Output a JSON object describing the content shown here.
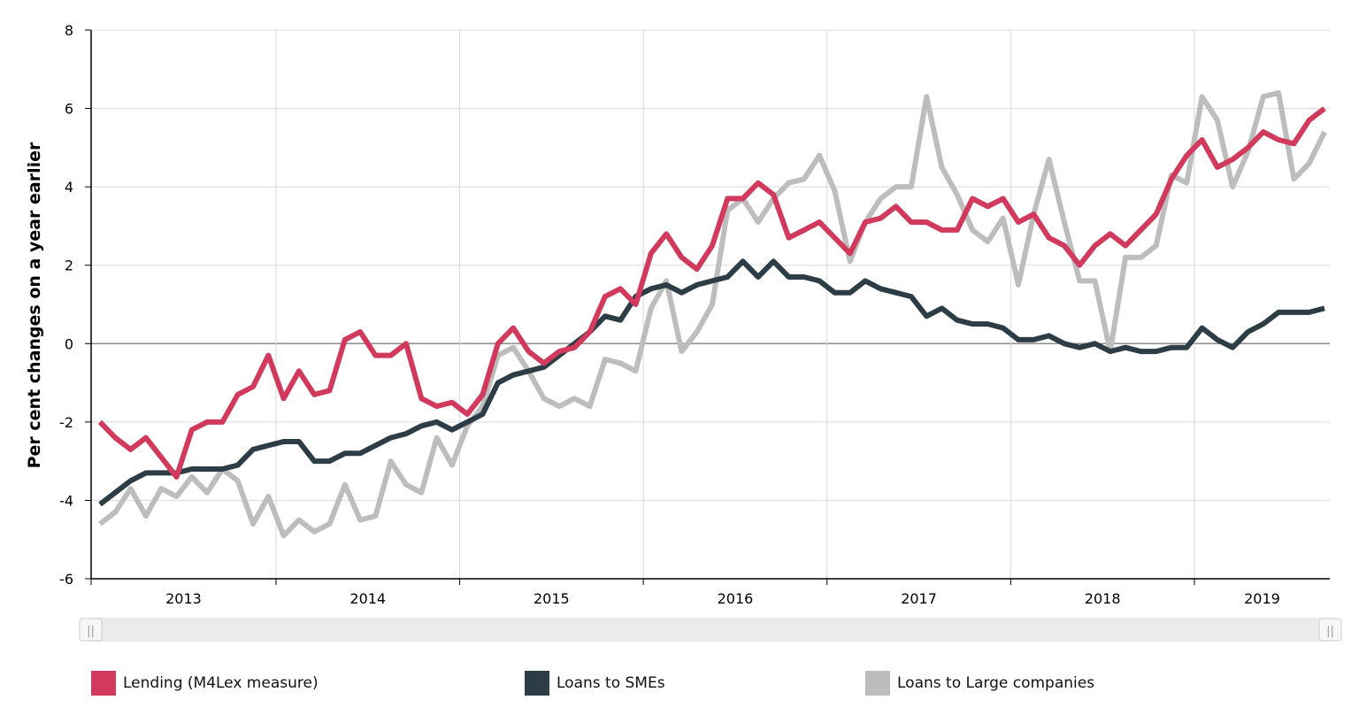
{
  "chart_data": {
    "type": "line",
    "title": "",
    "xlabel": "",
    "ylabel": "Per cent changes on a year earlier",
    "ylim": [
      -6,
      8
    ],
    "yticks": [
      -6,
      -4,
      -2,
      0,
      2,
      4,
      6,
      8
    ],
    "x_start": "2013-01",
    "x_end": "2019-08",
    "xtick_labels": [
      "2013",
      "2014",
      "2015",
      "2016",
      "2017",
      "2018",
      "2019"
    ],
    "grid": true,
    "legend_position": "bottom",
    "series": [
      {
        "name": "Lending (M4Lex measure)",
        "color": "#d13a5c",
        "values": [
          -2.0,
          -2.4,
          -2.7,
          -2.4,
          -2.9,
          -3.4,
          -2.2,
          -2.0,
          -2.0,
          -1.3,
          -1.1,
          -0.3,
          -1.4,
          -0.7,
          -1.3,
          -1.2,
          0.1,
          0.3,
          -0.3,
          -0.3,
          0.0,
          -1.4,
          -1.6,
          -1.5,
          -1.8,
          -1.3,
          0.0,
          0.4,
          -0.2,
          -0.5,
          -0.2,
          -0.1,
          0.3,
          1.2,
          1.4,
          1.0,
          2.3,
          2.8,
          2.2,
          1.9,
          2.5,
          3.7,
          3.7,
          4.1,
          3.8,
          2.7,
          2.9,
          3.1,
          2.7,
          2.3,
          3.1,
          3.2,
          3.5,
          3.1,
          3.1,
          2.9,
          2.9,
          3.7,
          3.5,
          3.7,
          3.1,
          3.3,
          2.7,
          2.5,
          2.0,
          2.5,
          2.8,
          2.5,
          2.9,
          3.3,
          4.2,
          4.8,
          5.2,
          4.5,
          4.7,
          5.0,
          5.4,
          5.2,
          5.1,
          5.7,
          6.0
        ]
      },
      {
        "name": "Loans to SMEs",
        "color": "#2d3d45",
        "values": [
          -4.1,
          -3.8,
          -3.5,
          -3.3,
          -3.3,
          -3.3,
          -3.2,
          -3.2,
          -3.2,
          -3.1,
          -2.7,
          -2.6,
          -2.5,
          -2.5,
          -3.0,
          -3.0,
          -2.8,
          -2.8,
          -2.6,
          -2.4,
          -2.3,
          -2.1,
          -2.0,
          -2.2,
          -2.0,
          -1.8,
          -1.0,
          -0.8,
          -0.7,
          -0.6,
          -0.3,
          0.0,
          0.3,
          0.7,
          0.6,
          1.2,
          1.4,
          1.5,
          1.3,
          1.5,
          1.6,
          1.7,
          2.1,
          1.7,
          2.1,
          1.7,
          1.7,
          1.6,
          1.3,
          1.3,
          1.6,
          1.4,
          1.3,
          1.2,
          0.7,
          0.9,
          0.6,
          0.5,
          0.5,
          0.4,
          0.1,
          0.1,
          0.2,
          0.0,
          -0.1,
          0.0,
          -0.2,
          -0.1,
          -0.2,
          -0.2,
          -0.1,
          -0.1,
          0.4,
          0.1,
          -0.1,
          0.3,
          0.5,
          0.8,
          0.8,
          0.8,
          0.9
        ]
      },
      {
        "name": "Loans to Large companies",
        "color": "#bdbdbd",
        "values": [
          -4.6,
          -4.3,
          -3.7,
          -4.4,
          -3.7,
          -3.9,
          -3.4,
          -3.8,
          -3.2,
          -3.5,
          -4.6,
          -3.9,
          -4.9,
          -4.5,
          -4.8,
          -4.6,
          -3.6,
          -4.5,
          -4.4,
          -3.0,
          -3.6,
          -3.8,
          -2.4,
          -3.1,
          -2.1,
          -1.6,
          -0.3,
          -0.1,
          -0.7,
          -1.4,
          -1.6,
          -1.4,
          -1.6,
          -0.4,
          -0.5,
          -0.7,
          0.9,
          1.6,
          -0.2,
          0.3,
          1.0,
          3.4,
          3.7,
          3.1,
          3.7,
          4.1,
          4.2,
          4.8,
          3.9,
          2.1,
          3.1,
          3.7,
          4.0,
          4.0,
          6.3,
          4.5,
          3.8,
          2.9,
          2.6,
          3.2,
          1.5,
          3.3,
          4.7,
          3.1,
          1.6,
          1.6,
          -0.2,
          2.2,
          2.2,
          2.5,
          4.3,
          4.1,
          6.3,
          5.7,
          4.0,
          4.9,
          6.3,
          6.4,
          4.2,
          4.6,
          5.4
        ]
      }
    ]
  },
  "navigator": {
    "left_handle_glyph": "||",
    "right_handle_glyph": "||"
  }
}
